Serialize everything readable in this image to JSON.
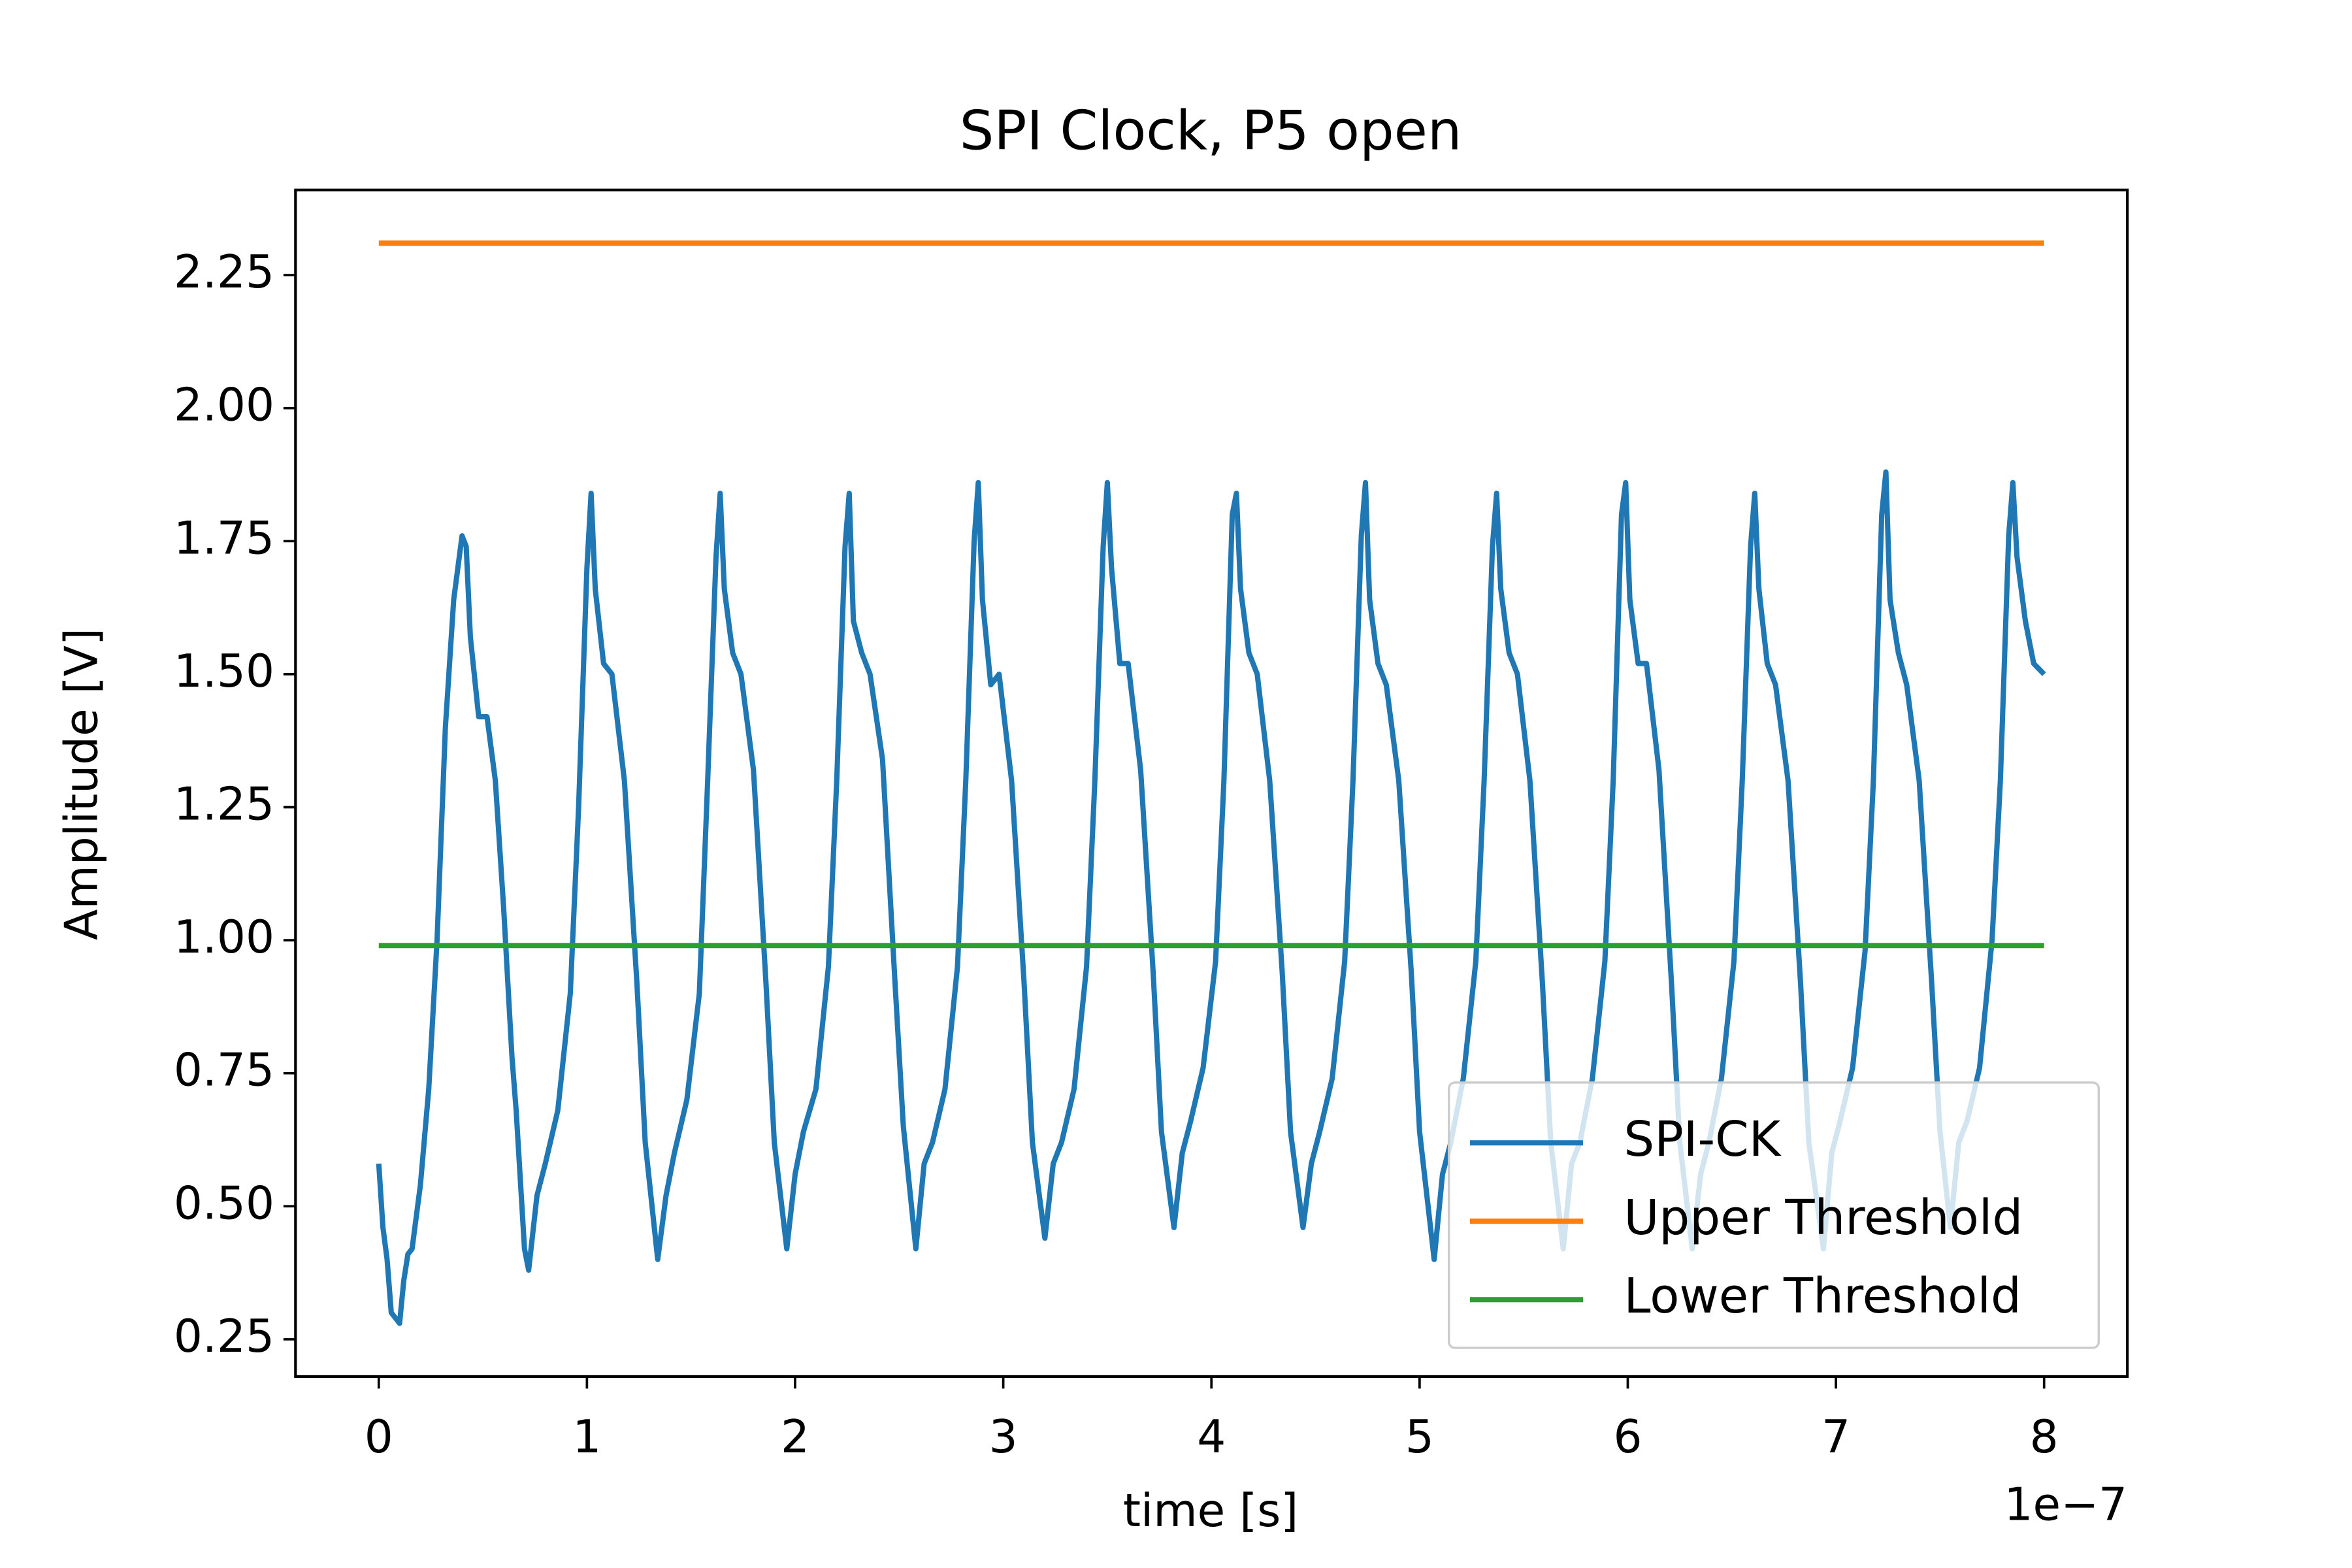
{
  "chart_data": {
    "type": "line",
    "title": "SPI Clock, P5 open",
    "xlabel": "time [s]",
    "ylabel": "Amplitude [V]",
    "x_offset_label": "1e−7",
    "xlim": [
      -0.4,
      8.4
    ],
    "ylim": [
      0.18,
      2.41
    ],
    "xticks": [
      0,
      1,
      2,
      3,
      4,
      5,
      6,
      7,
      8
    ],
    "yticks": [
      0.25,
      {
        "value": 0.5,
        "label": "0.50"
      },
      0.75,
      {
        "value": 1.0,
        "label": "1.00"
      },
      1.25,
      {
        "value": 1.5,
        "label": "1.50"
      },
      1.75,
      {
        "value": 2.0,
        "label": "2.00"
      },
      2.25
    ],
    "legend_loc": "lower right",
    "series": [
      {
        "name": "SPI-CK",
        "color": "#1f77b4",
        "x": [
          0,
          0.02,
          0.04,
          0.06,
          0.1,
          0.12,
          0.14,
          0.16,
          0.2,
          0.24,
          0.28,
          0.32,
          0.36,
          0.4,
          0.42,
          0.44,
          0.48,
          0.52,
          0.56,
          0.6,
          0.64,
          0.66,
          0.7,
          0.72,
          0.76,
          0.8,
          0.86,
          0.92,
          0.96,
          1.0,
          1.02,
          1.04,
          1.08,
          1.12,
          1.18,
          1.24,
          1.28,
          1.34,
          1.38,
          1.42,
          1.48,
          1.54,
          1.58,
          1.62,
          1.64,
          1.66,
          1.7,
          1.74,
          1.8,
          1.86,
          1.9,
          1.96,
          2.0,
          2.04,
          2.1,
          2.16,
          2.2,
          2.24,
          2.26,
          2.28,
          2.32,
          2.36,
          2.42,
          2.48,
          2.52,
          2.58,
          2.62,
          2.66,
          2.72,
          2.78,
          2.82,
          2.86,
          2.88,
          2.9,
          2.94,
          2.98,
          3.04,
          3.1,
          3.14,
          3.2,
          3.24,
          3.28,
          3.34,
          3.4,
          3.44,
          3.48,
          3.5,
          3.52,
          3.56,
          3.6,
          3.66,
          3.72,
          3.76,
          3.82,
          3.86,
          3.9,
          3.96,
          4.02,
          4.06,
          4.1,
          4.12,
          4.14,
          4.18,
          4.22,
          4.28,
          4.34,
          4.38,
          4.44,
          4.48,
          4.52,
          4.58,
          4.64,
          4.68,
          4.72,
          4.74,
          4.76,
          4.8,
          4.84,
          4.9,
          4.96,
          5.0,
          5.07,
          5.11,
          5.15,
          5.21,
          5.27,
          5.31,
          5.35,
          5.37,
          5.39,
          5.43,
          5.47,
          5.53,
          5.59,
          5.63,
          5.69,
          5.73,
          5.77,
          5.83,
          5.89,
          5.93,
          5.97,
          5.99,
          6.01,
          6.05,
          6.09,
          6.15,
          6.21,
          6.25,
          6.31,
          6.35,
          6.39,
          6.45,
          6.51,
          6.55,
          6.59,
          6.61,
          6.63,
          6.67,
          6.71,
          6.77,
          6.83,
          6.87,
          6.94,
          6.98,
          7.02,
          7.08,
          7.14,
          7.18,
          7.22,
          7.24,
          7.26,
          7.3,
          7.34,
          7.4,
          7.46,
          7.5,
          7.55,
          7.59,
          7.63,
          7.69,
          7.75,
          7.79,
          7.83,
          7.85,
          7.87,
          7.91,
          7.95,
          8.0
        ],
        "values": [
          0.58,
          0.46,
          0.4,
          0.3,
          0.28,
          0.36,
          0.41,
          0.42,
          0.54,
          0.72,
          1.0,
          1.4,
          1.64,
          1.76,
          1.74,
          1.57,
          1.42,
          1.42,
          1.3,
          1.06,
          0.78,
          0.68,
          0.42,
          0.38,
          0.52,
          0.58,
          0.68,
          0.9,
          1.25,
          1.7,
          1.84,
          1.66,
          1.52,
          1.5,
          1.3,
          0.92,
          0.62,
          0.4,
          0.52,
          0.6,
          0.7,
          0.9,
          1.3,
          1.72,
          1.84,
          1.66,
          1.54,
          1.5,
          1.32,
          0.92,
          0.62,
          0.42,
          0.56,
          0.64,
          0.72,
          0.95,
          1.3,
          1.74,
          1.84,
          1.6,
          1.54,
          1.5,
          1.34,
          0.92,
          0.65,
          0.42,
          0.58,
          0.62,
          0.72,
          0.95,
          1.3,
          1.75,
          1.86,
          1.64,
          1.48,
          1.5,
          1.3,
          0.92,
          0.62,
          0.44,
          0.58,
          0.62,
          0.72,
          0.95,
          1.3,
          1.74,
          1.86,
          1.7,
          1.52,
          1.52,
          1.32,
          0.94,
          0.64,
          0.46,
          0.6,
          0.66,
          0.76,
          0.96,
          1.3,
          1.8,
          1.84,
          1.66,
          1.54,
          1.5,
          1.3,
          0.94,
          0.64,
          0.46,
          0.58,
          0.64,
          0.74,
          0.96,
          1.3,
          1.76,
          1.86,
          1.64,
          1.52,
          1.48,
          1.3,
          0.94,
          0.64,
          0.4,
          0.56,
          0.62,
          0.74,
          0.96,
          1.3,
          1.74,
          1.84,
          1.66,
          1.54,
          1.5,
          1.3,
          0.92,
          0.62,
          0.42,
          0.58,
          0.62,
          0.74,
          0.96,
          1.3,
          1.8,
          1.86,
          1.64,
          1.52,
          1.52,
          1.32,
          0.92,
          0.62,
          0.42,
          0.56,
          0.62,
          0.74,
          0.96,
          1.3,
          1.74,
          1.84,
          1.66,
          1.52,
          1.48,
          1.3,
          0.92,
          0.62,
          0.42,
          0.6,
          0.66,
          0.76,
          0.98,
          1.3,
          1.8,
          1.88,
          1.64,
          1.54,
          1.48,
          1.3,
          0.92,
          0.64,
          0.46,
          0.62,
          0.66,
          0.76,
          1.0,
          1.3,
          1.76,
          1.86,
          1.72,
          1.6,
          1.52,
          1.5
        ]
      },
      {
        "name": "Upper Threshold",
        "color": "#ff7f0e",
        "x": [
          0,
          8
        ],
        "values": [
          2.31,
          2.31
        ]
      },
      {
        "name": "Lower Threshold",
        "color": "#2ca02c",
        "x": [
          0,
          8
        ],
        "values": [
          0.99,
          0.99
        ]
      }
    ]
  }
}
